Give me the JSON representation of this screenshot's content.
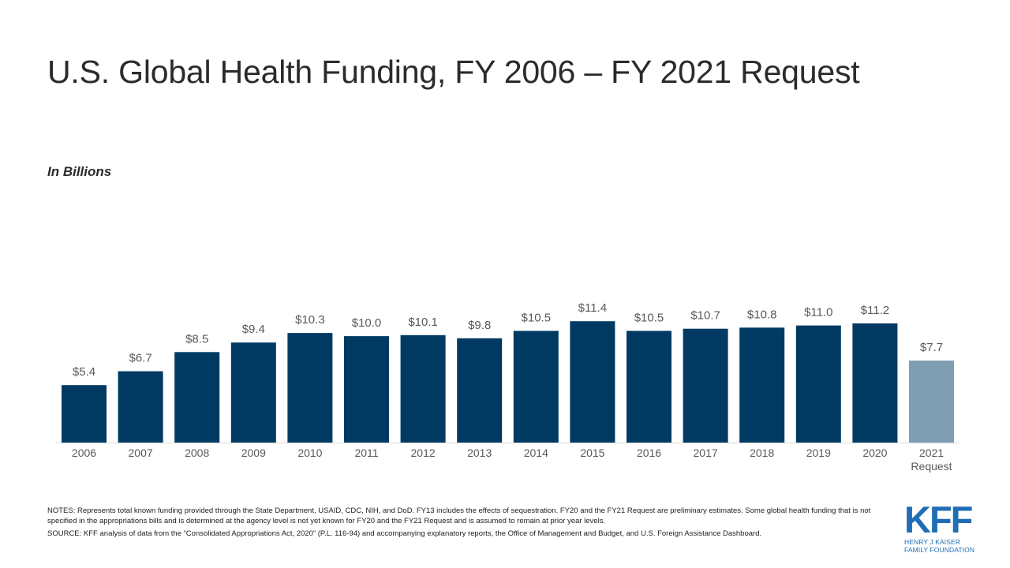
{
  "title": "U.S. Global Health Funding, FY 2006 – FY 2021 Request",
  "units_label": "In Billions",
  "chart_data": {
    "type": "bar",
    "title": "U.S. Global Health Funding, FY 2006 – FY 2021 Request",
    "ylabel": "In Billions",
    "xlabel": "",
    "ylim": [
      0,
      12
    ],
    "grid": false,
    "legend": "none",
    "categories": [
      "2006",
      "2007",
      "2008",
      "2009",
      "2010",
      "2011",
      "2012",
      "2013",
      "2014",
      "2015",
      "2016",
      "2017",
      "2018",
      "2019",
      "2020",
      "2021 Request"
    ],
    "values": [
      5.4,
      6.7,
      8.5,
      9.4,
      10.3,
      10.0,
      10.1,
      9.8,
      10.5,
      11.4,
      10.5,
      10.7,
      10.8,
      11.0,
      11.2,
      7.7
    ],
    "data_labels": [
      "$5.4",
      "$6.7",
      "$8.5",
      "$9.4",
      "$10.3",
      "$10.0",
      "$10.1",
      "$9.8",
      "$10.5",
      "$11.4",
      "$10.5",
      "$10.7",
      "$10.8",
      "$11.0",
      "$11.2",
      "$7.7"
    ],
    "colors": {
      "enacted": "#003a63",
      "request": "#7f9eb2",
      "label_text": "#595959",
      "axis": "#d9d9d9"
    }
  },
  "notes": "NOTES:  Represents total known funding provided through the State Department, USAID, CDC, NIH, and DoD. FY13 includes the effects of sequestration. FY20 and the FY21 Request are preliminary estimates. Some global health funding that is not specified in the appropriations bills and is determined at the agency level is not yet known for FY20 and the FY21 Request and is assumed to remain at prior year levels.",
  "source": "SOURCE:  KFF analysis of data from the “Consolidated Appropriations Act, 2020” (P.L. 116-94) and accompanying explanatory reports, the Office of Management and Budget, and U.S. Foreign Assistance Dashboard.",
  "logo": {
    "mark": "KFF",
    "line1": "HENRY J KAISER",
    "line2": "FAMILY FOUNDATION",
    "color": "#1f6db5"
  }
}
